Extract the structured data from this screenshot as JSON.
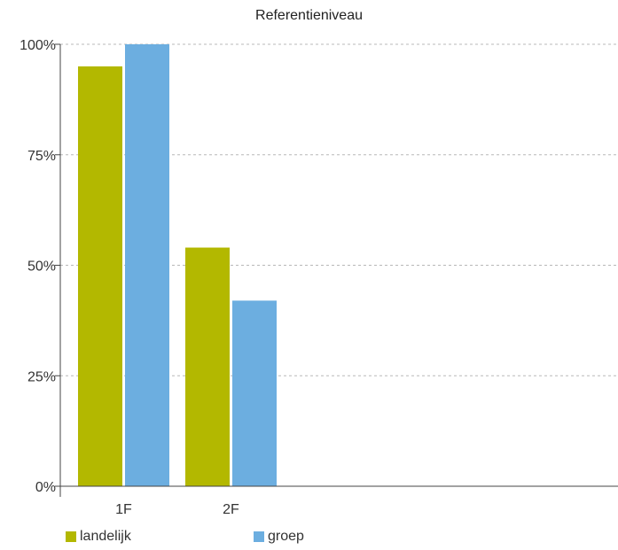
{
  "chart_data": {
    "type": "bar",
    "title": "Referentieniveau",
    "xlabel": "",
    "ylabel": "",
    "categories": [
      "1F",
      "2F"
    ],
    "series": [
      {
        "name": "landelijk",
        "values": [
          95,
          54
        ],
        "color": "#b3b800"
      },
      {
        "name": "groep",
        "values": [
          100,
          42
        ],
        "color": "#6caee0"
      }
    ],
    "ylim": [
      0,
      100
    ],
    "yticks": [
      {
        "value": 0,
        "label": "0%"
      },
      {
        "value": 25,
        "label": "25%"
      },
      {
        "value": 50,
        "label": "50%"
      },
      {
        "value": 75,
        "label": "75%"
      },
      {
        "value": 100,
        "label": "100%"
      }
    ],
    "grid": true,
    "legend_position": "bottom-left"
  }
}
